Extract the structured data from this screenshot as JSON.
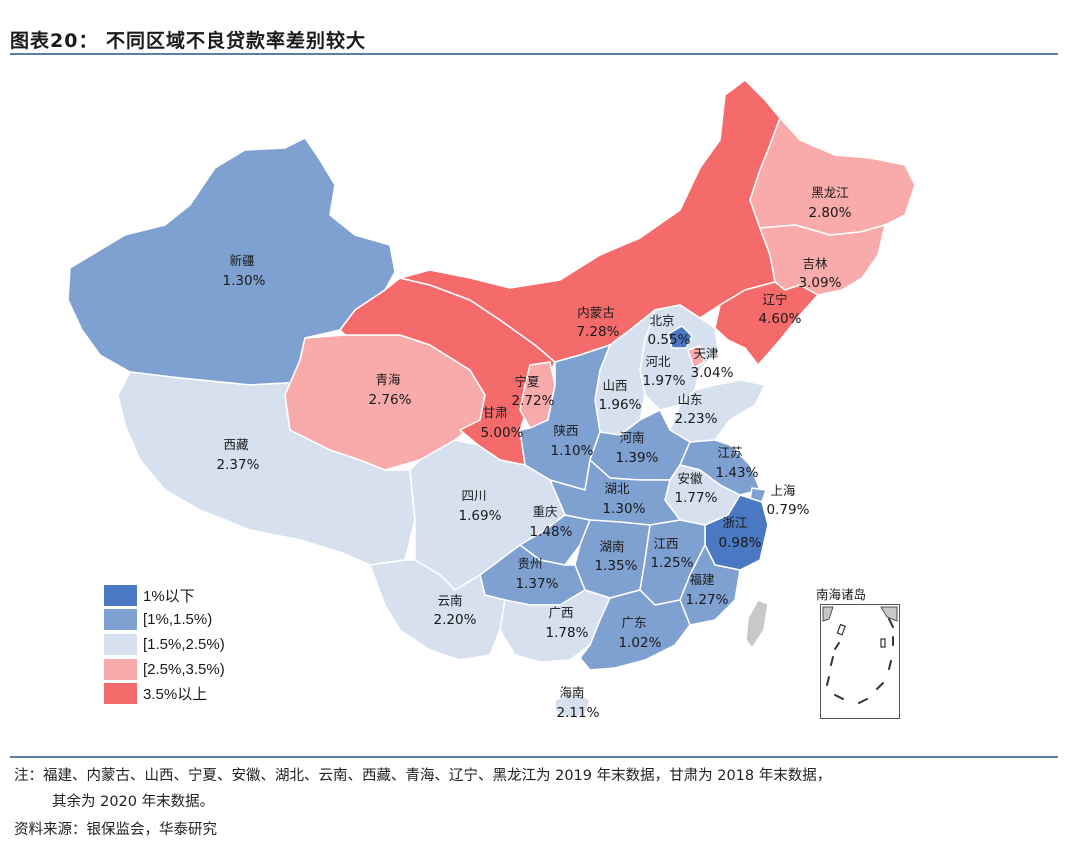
{
  "title": "图表20：  不同区域不良贷款率差别较大",
  "colors": {
    "lt1": "#4a78c2",
    "b1_1_5": "#7fa1d2",
    "b1_5_2_5": "#d6e0ef",
    "b2_5_3_5": "#f9aaaa",
    "gt3_5": "#f56a6a"
  },
  "legend": [
    {
      "label": "1%以下",
      "color": "#4a78c2"
    },
    {
      "label": "[1%,1.5%)",
      "color": "#7fa1d2"
    },
    {
      "label": "[1.5%,2.5%)",
      "color": "#d6e0ef"
    },
    {
      "label": "[2.5%,3.5%)",
      "color": "#f9aaaa"
    },
    {
      "label": "3.5%以上",
      "color": "#f56a6a"
    }
  ],
  "provinces": {
    "xinjiang": {
      "name": "新疆",
      "value": "1.30%"
    },
    "xizang": {
      "name": "西藏",
      "value": "2.37%"
    },
    "qinghai": {
      "name": "青海",
      "value": "2.76%"
    },
    "gansu": {
      "name": "甘肃",
      "value": "5.00%"
    },
    "neimenggu": {
      "name": "内蒙古",
      "value": "7.28%"
    },
    "ningxia": {
      "name": "宁夏",
      "value": "2.72%"
    },
    "heilongjiang": {
      "name": "黑龙江",
      "value": "2.80%"
    },
    "jilin": {
      "name": "吉林",
      "value": "3.09%"
    },
    "liaoning": {
      "name": "辽宁",
      "value": "4.60%"
    },
    "beijing": {
      "name": "北京",
      "value": "0.55%"
    },
    "tianjin": {
      "name": "天津",
      "value": "3.04%"
    },
    "hebei": {
      "name": "河北",
      "value": "1.97%"
    },
    "shanxi": {
      "name": "山西",
      "value": "1.96%"
    },
    "shandong": {
      "name": "山东",
      "value": "2.23%"
    },
    "shaanxi": {
      "name": "陕西",
      "value": "1.10%"
    },
    "henan": {
      "name": "河南",
      "value": "1.39%"
    },
    "jiangsu": {
      "name": "江苏",
      "value": "1.43%"
    },
    "shanghai": {
      "name": "上海",
      "value": "0.79%"
    },
    "anhui": {
      "name": "安徽",
      "value": "1.77%"
    },
    "hubei": {
      "name": "湖北",
      "value": "1.30%"
    },
    "sichuan": {
      "name": "四川",
      "value": "1.69%"
    },
    "chongqing": {
      "name": "重庆",
      "value": "1.48%"
    },
    "zhejiang": {
      "name": "浙江",
      "value": "0.98%"
    },
    "hunan": {
      "name": "湖南",
      "value": "1.35%"
    },
    "jiangxi": {
      "name": "江西",
      "value": "1.25%"
    },
    "guizhou": {
      "name": "贵州",
      "value": "1.37%"
    },
    "fujian": {
      "name": "福建",
      "value": "1.27%"
    },
    "yunnan": {
      "name": "云南",
      "value": "2.20%"
    },
    "guangxi": {
      "name": "广西",
      "value": "1.78%"
    },
    "guangdong": {
      "name": "广东",
      "value": "1.02%"
    },
    "hainan": {
      "name": "海南",
      "value": "2.11%"
    }
  },
  "inset_title": "南海诸岛",
  "note_line1": "注：福建、内蒙古、山西、宁夏、安徽、湖北、云南、西藏、青海、辽宁、黑龙江为 2019 年末数据，甘肃为 2018 年末数据，",
  "note_line2": "其余为 2020 年末数据。",
  "source": "资料来源：银保监会，华泰研究"
}
